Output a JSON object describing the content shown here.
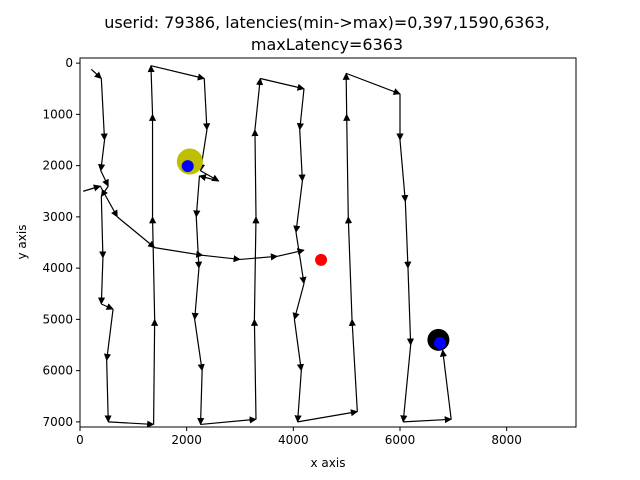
{
  "chart_data": {
    "type": "scatter",
    "title_lines": [
      "userid: 79386, latencies(min->max)=0,397,1590,6363,",
      "maxLatency=6363"
    ],
    "xlabel": "x axis",
    "ylabel": "y axis",
    "xlim": [
      0,
      9300
    ],
    "ylim": [
      7100,
      -100
    ],
    "y_inverted": true,
    "xticks": [
      0,
      2000,
      4000,
      6000,
      8000
    ],
    "yticks": [
      0,
      1000,
      2000,
      3000,
      4000,
      5000,
      6000,
      7000
    ],
    "grid": false,
    "path_color": "#000000",
    "path": [
      [
        213,
        120
      ],
      [
        400,
        300
      ],
      [
        460,
        1500
      ],
      [
        390,
        2100
      ],
      [
        530,
        2400
      ],
      [
        400,
        2600
      ],
      [
        430,
        3800
      ],
      [
        400,
        4700
      ],
      [
        620,
        4800
      ],
      [
        500,
        5800
      ],
      [
        530,
        7000
      ],
      [
        1380,
        7050
      ],
      [
        1400,
        5000
      ],
      [
        1360,
        3000
      ],
      [
        1360,
        1000
      ],
      [
        1330,
        50
      ],
      [
        2330,
        300
      ],
      [
        2380,
        1300
      ],
      [
        2260,
        2100
      ],
      [
        2600,
        2300
      ],
      [
        2240,
        2200
      ],
      [
        2180,
        3000
      ],
      [
        2230,
        4000
      ],
      [
        2150,
        5000
      ],
      [
        2290,
        6000
      ],
      [
        2260,
        7050
      ],
      [
        3300,
        6950
      ],
      [
        3270,
        5000
      ],
      [
        3300,
        3000
      ],
      [
        3280,
        1300
      ],
      [
        3380,
        300
      ],
      [
        4200,
        500
      ],
      [
        4120,
        1300
      ],
      [
        4170,
        2300
      ],
      [
        4050,
        3300
      ],
      [
        4200,
        4300
      ],
      [
        4020,
        5000
      ],
      [
        4150,
        6000
      ],
      [
        4080,
        7000
      ],
      [
        5200,
        6800
      ],
      [
        5100,
        5000
      ],
      [
        5030,
        3000
      ],
      [
        5000,
        1000
      ],
      [
        4990,
        200
      ],
      [
        6000,
        600
      ],
      [
        6000,
        1500
      ],
      [
        6100,
        2700
      ],
      [
        6150,
        4000
      ],
      [
        6200,
        5500
      ],
      [
        6060,
        7000
      ],
      [
        6960,
        6950
      ],
      [
        6800,
        5600
      ]
    ],
    "crossing_path": [
      [
        60,
        2500
      ],
      [
        380,
        2400
      ],
      [
        700,
        3000
      ],
      [
        1400,
        3600
      ],
      [
        2300,
        3750
      ],
      [
        3000,
        3830
      ],
      [
        3700,
        3770
      ],
      [
        4200,
        3650
      ]
    ],
    "markers": [
      {
        "x": 2060,
        "y": 1920,
        "size": 13,
        "color": "#bfbf00"
      },
      {
        "x": 2020,
        "y": 2010,
        "size": 6,
        "color": "#0000ff"
      },
      {
        "x": 4520,
        "y": 3840,
        "size": 6,
        "color": "#ff0000"
      },
      {
        "x": 6720,
        "y": 5400,
        "size": 11,
        "color": "#000000"
      },
      {
        "x": 6750,
        "y": 5460,
        "size": 6,
        "color": "#0000ff"
      }
    ]
  }
}
